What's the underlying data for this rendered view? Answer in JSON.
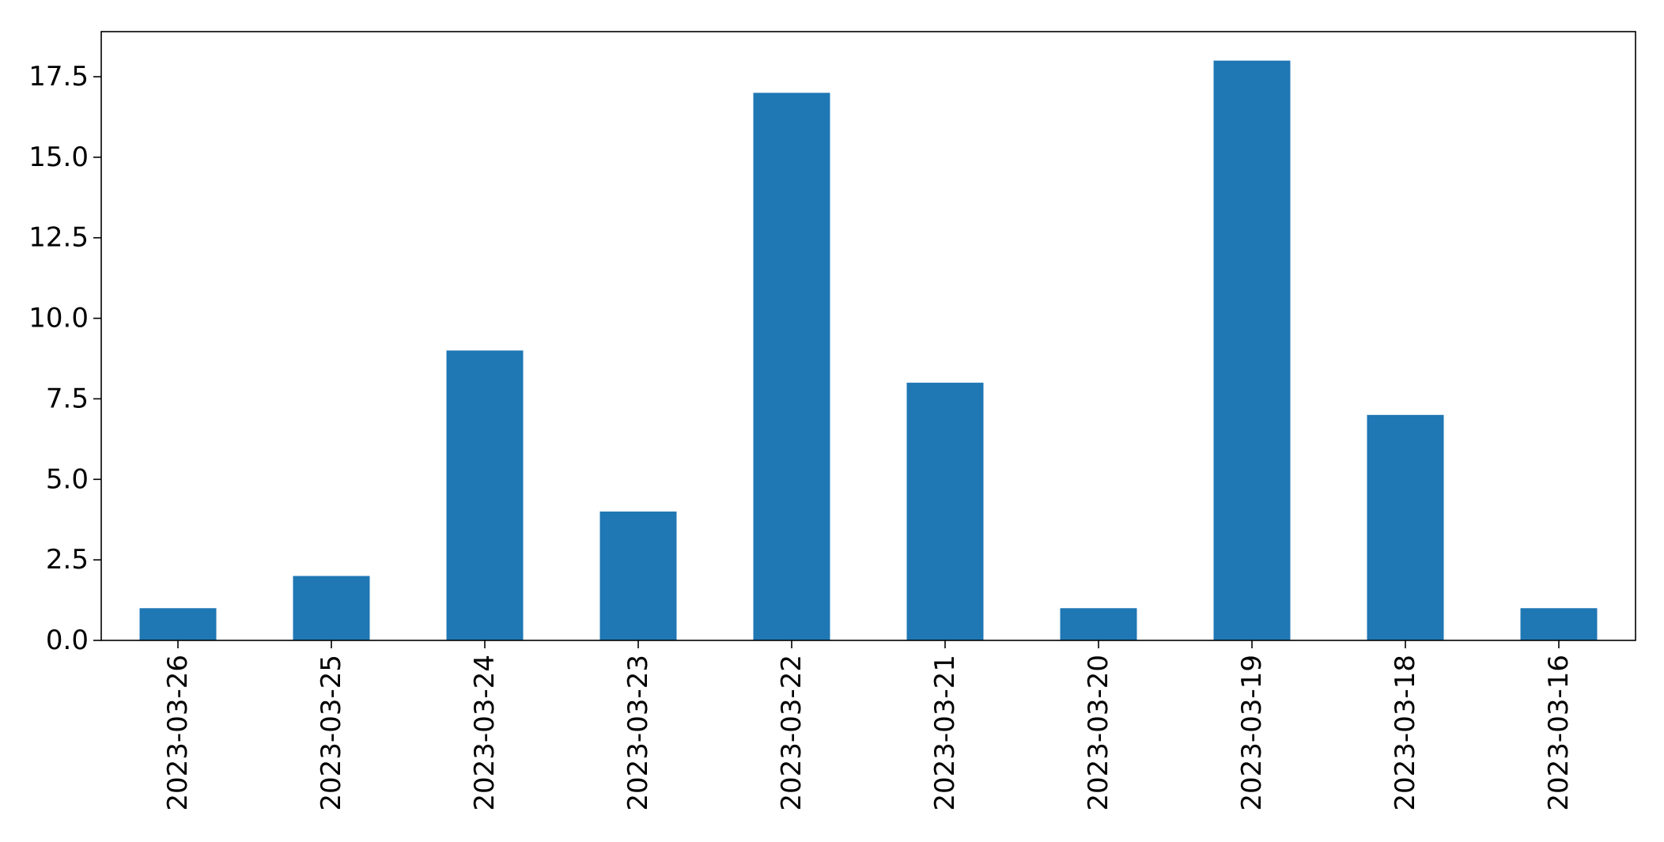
{
  "chart_data": {
    "type": "bar",
    "title": "",
    "xlabel": "",
    "ylabel": "",
    "categories": [
      "2023-03-26",
      "2023-03-25",
      "2023-03-24",
      "2023-03-23",
      "2023-03-22",
      "2023-03-21",
      "2023-03-20",
      "2023-03-19",
      "2023-03-18",
      "2023-03-16"
    ],
    "values": [
      1,
      2,
      9,
      4,
      17,
      8,
      1,
      18,
      7,
      1
    ],
    "ylim": [
      0,
      18.9
    ],
    "yticks": [
      "0.0",
      "2.5",
      "5.0",
      "7.5",
      "10.0",
      "12.5",
      "15.0",
      "17.5"
    ],
    "grid": false,
    "legend": "none",
    "colors": {
      "bar": "#1f77b4",
      "axis": "#000000"
    }
  }
}
